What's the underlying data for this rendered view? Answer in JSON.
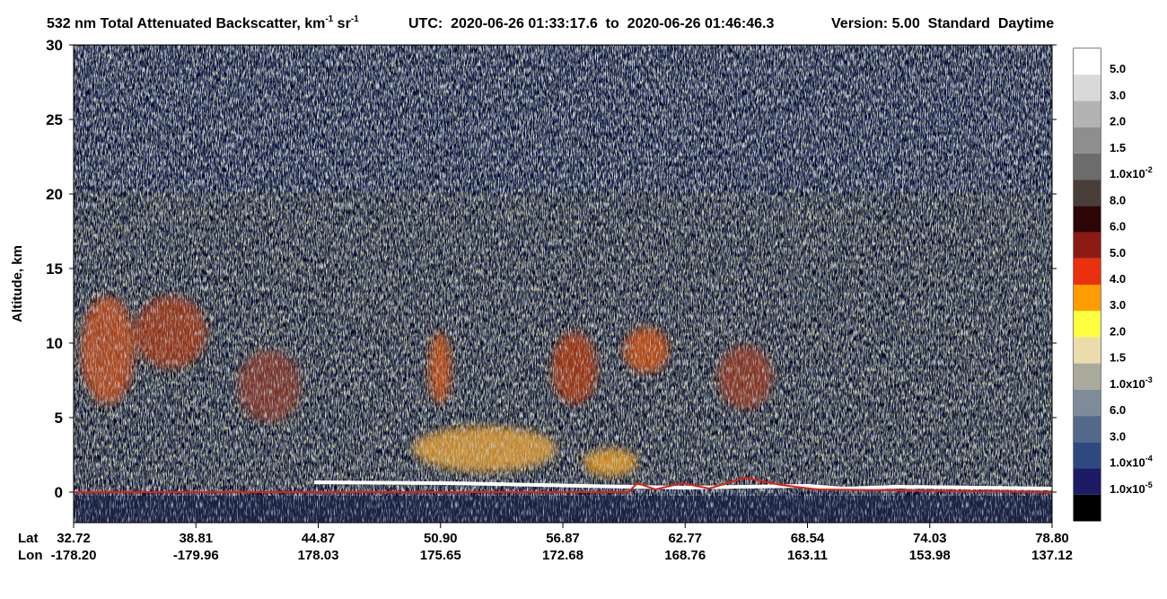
{
  "chart_data": {
    "type": "curtain",
    "title_parts": [
      "532 nm Total Attenuated Backscatter, km",
      "-1",
      " sr",
      "-1"
    ],
    "utc": "UTC:  2020-06-26 01:33:17.6  to  2020-06-26 01:46:46.3",
    "version": "Version: 5.00  Standard  Daytime",
    "y_label": "Altitude, km",
    "ylim": [
      -2,
      30
    ],
    "yticks": [
      0,
      5,
      10,
      15,
      20,
      25,
      30
    ],
    "x_rows": [
      "Lat",
      "Lon"
    ],
    "lat": [
      "32.72",
      "38.81",
      "44.87",
      "50.90",
      "56.87",
      "62.77",
      "68.54",
      "74.03",
      "78.80"
    ],
    "lon": [
      "-178.20",
      "-179.96",
      "178.03",
      "175.65",
      "172.68",
      "168.76",
      "163.11",
      "153.98",
      "137.12"
    ],
    "colorbar_colors": [
      "#ffffff",
      "#d9d9d9",
      "#b3b3b3",
      "#8e8e8e",
      "#6c6c6c",
      "#4a3e3a",
      "#2c0606",
      "#8a1a12",
      "#ea300c",
      "#ff9c00",
      "#ffff40",
      "#ecdcac",
      "#a9aa9c",
      "#7d8c98",
      "#52698a",
      "#2f4880",
      "#1c1c66",
      "#000000"
    ],
    "colorbar_labels": [
      {
        "base": "5.0"
      },
      {
        "base": "3.0"
      },
      {
        "base": "2.0"
      },
      {
        "base": "1.5"
      },
      {
        "base": "1.0x10",
        "exp": "-2"
      },
      {
        "base": "8.0"
      },
      {
        "base": "6.0"
      },
      {
        "base": "5.0"
      },
      {
        "base": "4.0"
      },
      {
        "base": "3.0"
      },
      {
        "base": "2.0"
      },
      {
        "base": "1.5"
      },
      {
        "base": "1.0x10",
        "exp": "-3"
      },
      {
        "base": "6.0"
      },
      {
        "base": "3.0"
      },
      {
        "base": "1.0x10",
        "exp": "-4"
      },
      {
        "base": "1.0x10",
        "exp": "-5"
      }
    ]
  }
}
